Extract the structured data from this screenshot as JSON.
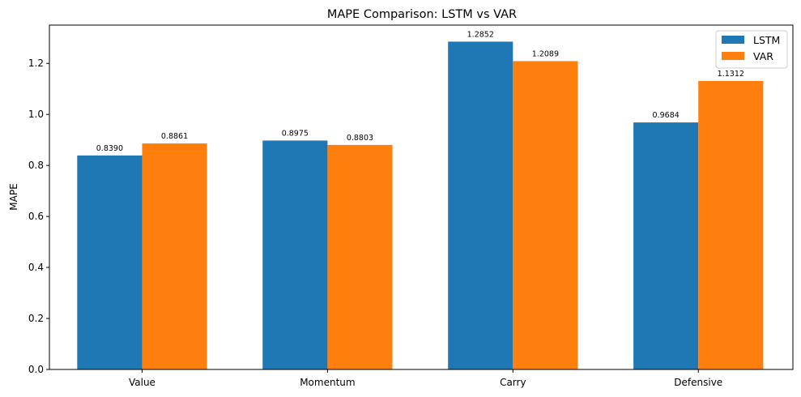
{
  "chart_data": {
    "type": "bar",
    "title": "MAPE Comparison: LSTM vs VAR",
    "xlabel": "",
    "ylabel": "MAPE",
    "categories": [
      "Value",
      "Momentum",
      "Carry",
      "Defensive"
    ],
    "series": [
      {
        "name": "LSTM",
        "color": "#1f77b4",
        "values": [
          0.839,
          0.8975,
          1.2852,
          0.9684
        ],
        "labels": [
          "0.8390",
          "0.8975",
          "1.2852",
          "0.9684"
        ]
      },
      {
        "name": "VAR",
        "color": "#ff7f0e",
        "values": [
          0.8861,
          0.8803,
          1.2089,
          1.1312
        ],
        "labels": [
          "0.8861",
          "0.8803",
          "1.2089",
          "1.1312"
        ]
      }
    ],
    "ylim": [
      0,
      1.35
    ],
    "yticks": [
      "0.0",
      "0.2",
      "0.4",
      "0.6",
      "0.8",
      "1.0",
      "1.2"
    ],
    "grid": false,
    "legend_position": "top-right"
  }
}
